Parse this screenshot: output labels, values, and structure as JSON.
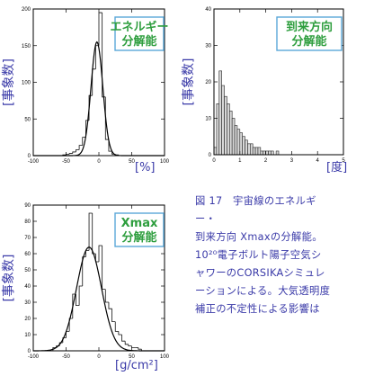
{
  "chart_data": [
    {
      "type": "histogram",
      "tag_lines": [
        "エネルギー",
        "分解能"
      ],
      "ylabel": "[事象数]",
      "xunit": "[%]",
      "xlim": [
        -100,
        100
      ],
      "ylim": [
        0,
        200
      ],
      "xticks": [
        -100,
        -50,
        0,
        50,
        100
      ],
      "yticks": [
        0,
        50,
        100,
        150,
        200
      ],
      "bin_width": 5,
      "bins_x": [
        -60,
        -55,
        -50,
        -45,
        -40,
        -35,
        -30,
        -25,
        -20,
        -15,
        -10,
        -5,
        0,
        5,
        10,
        15,
        20,
        25,
        30
      ],
      "bins_y": [
        0,
        1,
        2,
        3,
        5,
        8,
        14,
        25,
        48,
        82,
        118,
        150,
        195,
        80,
        22,
        6,
        2,
        1,
        0
      ],
      "fit": {
        "type": "gaussian",
        "mean": -3,
        "sigma": 9,
        "amplitude": 155
      }
    },
    {
      "type": "histogram",
      "tag_lines": [
        "到来方向",
        "分解能"
      ],
      "ylabel": "[事象数]",
      "xunit": "[度]",
      "xlim": [
        0,
        5
      ],
      "ylim": [
        0,
        40
      ],
      "xticks": [
        0,
        1,
        2,
        3,
        4,
        5
      ],
      "yticks": [
        0,
        10,
        20,
        30,
        40
      ],
      "bin_width": 0.1,
      "filled": true,
      "bins_x": [
        0.0,
        0.1,
        0.2,
        0.3,
        0.4,
        0.5,
        0.6,
        0.7,
        0.8,
        0.9,
        1.0,
        1.1,
        1.2,
        1.3,
        1.4,
        1.5,
        1.6,
        1.7,
        1.8,
        1.9,
        2.0,
        2.1,
        2.2,
        2.3,
        2.4,
        2.5
      ],
      "bins_y": [
        2,
        14,
        23,
        19,
        16,
        14,
        12,
        10,
        8,
        7,
        6,
        5,
        4,
        3,
        3,
        2,
        2,
        2,
        1,
        1,
        1,
        1,
        1,
        0,
        1,
        0
      ]
    },
    {
      "type": "histogram",
      "tag_lines": [
        "Xmax",
        "分解能"
      ],
      "ylabel": "[事象数]",
      "xunit": "[g/cm²]",
      "xlim": [
        -100,
        100
      ],
      "ylim": [
        0,
        90
      ],
      "xticks": [
        -100,
        -50,
        0,
        50,
        100
      ],
      "yticks": [
        0,
        10,
        20,
        30,
        40,
        50,
        60,
        70,
        80,
        90
      ],
      "bin_width": 5,
      "bins_x": [
        -75,
        -70,
        -65,
        -60,
        -55,
        -50,
        -45,
        -40,
        -35,
        -30,
        -25,
        -20,
        -15,
        -10,
        -5,
        0,
        5,
        10,
        15,
        20,
        25,
        30,
        35,
        40,
        45,
        50,
        55,
        60,
        65
      ],
      "bins_y": [
        0,
        2,
        3,
        5,
        8,
        12,
        20,
        35,
        28,
        40,
        58,
        62,
        85,
        60,
        55,
        65,
        38,
        30,
        26,
        18,
        12,
        10,
        6,
        4,
        3,
        2,
        2,
        1,
        0
      ],
      "fit": {
        "type": "gaussian",
        "mean": -15,
        "sigma": 19,
        "amplitude": 64
      }
    }
  ],
  "caption": {
    "lines": [
      "図 17　宇宙線のエネルギ",
      "ー・",
      "到来方向 Xmaxの分解能。",
      "10²⁰電子ボルト陽子空気シ",
      "ャワーのCORSIKAシミュレ",
      "ーションによる。大気透明度",
      "補正の不定性による影響は"
    ]
  },
  "colors": {
    "label_blue": "#3a3aa8",
    "tag_green": "#2e9e3e",
    "box_border": "#5aa7d8"
  }
}
